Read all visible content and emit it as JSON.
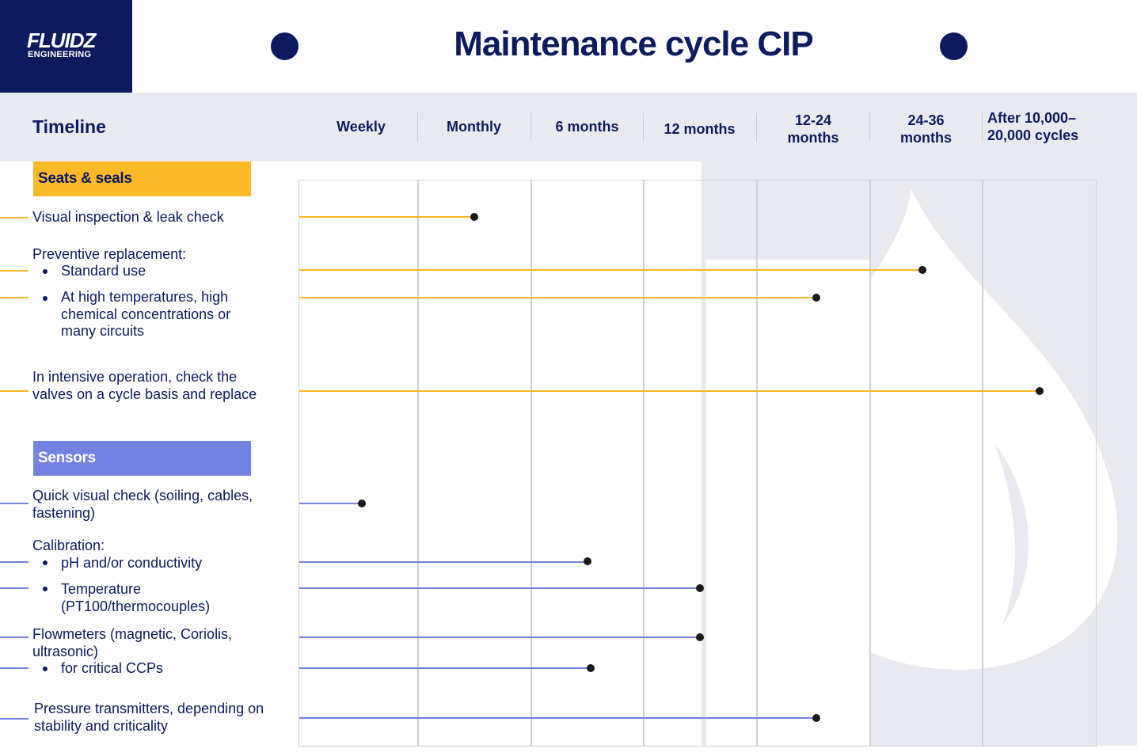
{
  "brand": {
    "logo_main": "FLUIDZ",
    "logo_sub": "ENGINEERING",
    "primary_color": "#0d1b5e",
    "seats_color": "#fbb829",
    "sensors_color": "#7482e3"
  },
  "title": "Maintenance cycle CIP",
  "timeline": {
    "label": "Timeline",
    "periods": [
      "Weekly",
      "Monthly",
      "6 months",
      "12 months",
      "12-24\nmonths",
      "24-36\nmonths",
      "After 10,000–\n20,000 cycles"
    ]
  },
  "categories": [
    {
      "name": "Seats & seals",
      "color": "#fbb829",
      "tasks": [
        {
          "label": "Visual inspection & leak check",
          "interval": "Monthly"
        },
        {
          "label": "Preventive replacement:",
          "interval": null
        },
        {
          "label": "Standard use",
          "interval": "24-36 months",
          "bullet": true
        },
        {
          "label": "At high temperatures, high chemical concentrations or many circuits",
          "interval": "12-24 months",
          "bullet": true
        },
        {
          "label": "In intensive operation, check the valves on a cycle basis and replace",
          "interval": "After 10,000–20,000 cycles"
        }
      ]
    },
    {
      "name": "Sensors",
      "color": "#7482e3",
      "tasks": [
        {
          "label": "Quick visual check (soiling, cables, fastening)",
          "interval": "Weekly"
        },
        {
          "label": "Calibration:",
          "interval": null
        },
        {
          "label": "pH and/or conductivity",
          "interval": "6 months",
          "bullet": true
        },
        {
          "label": "Temperature (PT100/thermocouples)",
          "interval": "12 months",
          "bullet": true
        },
        {
          "label": "Flowmeters (magnetic, Coriolis, ultrasonic)",
          "interval": "12 months"
        },
        {
          "label": "for critical CCPs",
          "interval": "6 months",
          "bullet": true
        },
        {
          "label": "Pressure transmitters, depending on stability and criticality",
          "interval": "12-24 months"
        }
      ]
    }
  ]
}
